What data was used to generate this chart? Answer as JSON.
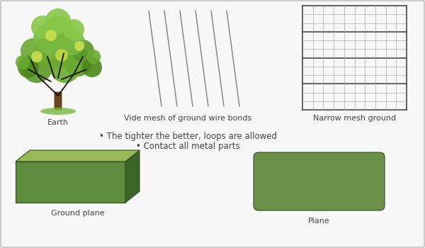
{
  "background_color": "#f7f7f7",
  "border_color": "#bbbbbb",
  "bullet1": "• The tighter the better, loops are allowed",
  "bullet2": "• Contact all metal parts",
  "label_earth": "Earth",
  "label_vide": "Vide mesh of ground wire bonds",
  "label_narrow": "Narrow mesh ground",
  "label_ground_plane": "Ground plane",
  "label_plane": "Plane",
  "label_fontsize": 8,
  "bullet_fontsize": 8.5,
  "text_color": "#444444",
  "grid_color_thin": "#aaaaaa",
  "grid_color_thick": "#555555",
  "mesh_color": "#888888",
  "green_face": "#5e8c3e",
  "green_top": "#9ab85a",
  "green_side": "#3d6428",
  "plane_green": "#6b9148"
}
